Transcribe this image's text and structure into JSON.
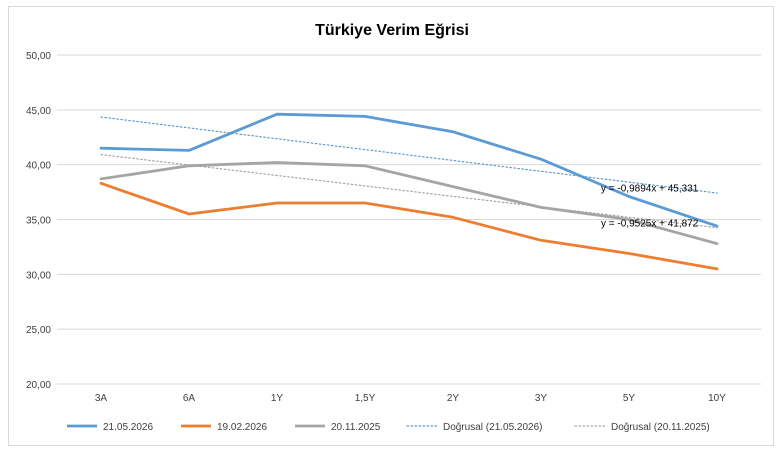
{
  "chart_data": {
    "type": "line",
    "title": "Türkiye Verim Eğrisi",
    "categories": [
      "3A",
      "6A",
      "1Y",
      "1,5Y",
      "2Y",
      "3Y",
      "5Y",
      "10Y"
    ],
    "ylim": [
      20,
      50
    ],
    "y_ticks": [
      "20,00",
      "25,00",
      "30,00",
      "35,00",
      "40,00",
      "45,00",
      "50,00"
    ],
    "grid": true,
    "legend_position": "bottom",
    "series": [
      {
        "name": "21.05.2026",
        "color": "#5b9bd5",
        "style": "solid",
        "values": [
          41.5,
          41.3,
          44.6,
          44.4,
          43.0,
          40.5,
          37.1,
          34.4
        ]
      },
      {
        "name": "19.02.2026",
        "color": "#ed7d31",
        "style": "solid",
        "values": [
          38.3,
          35.5,
          36.5,
          36.5,
          35.2,
          33.1,
          31.9,
          30.5
        ]
      },
      {
        "name": "20.11.2025",
        "color": "#a5a5a5",
        "style": "solid",
        "values": [
          38.7,
          39.9,
          40.2,
          39.9,
          38.0,
          36.1,
          35.0,
          32.8
        ]
      }
    ],
    "trendlines": [
      {
        "name": "Doğrusal (21.05.2026)",
        "color": "#5b9bd5",
        "style": "dotted",
        "slope": -0.9894,
        "intercept": 45.331,
        "equation": "y = -0,9894x + 45,331"
      },
      {
        "name": "Doğrusal (20.11.2025)",
        "color": "#a5a5a5",
        "style": "dotted",
        "slope": -0.9525,
        "intercept": 41.872,
        "equation": "y = -0,9525x + 41,872"
      }
    ]
  }
}
